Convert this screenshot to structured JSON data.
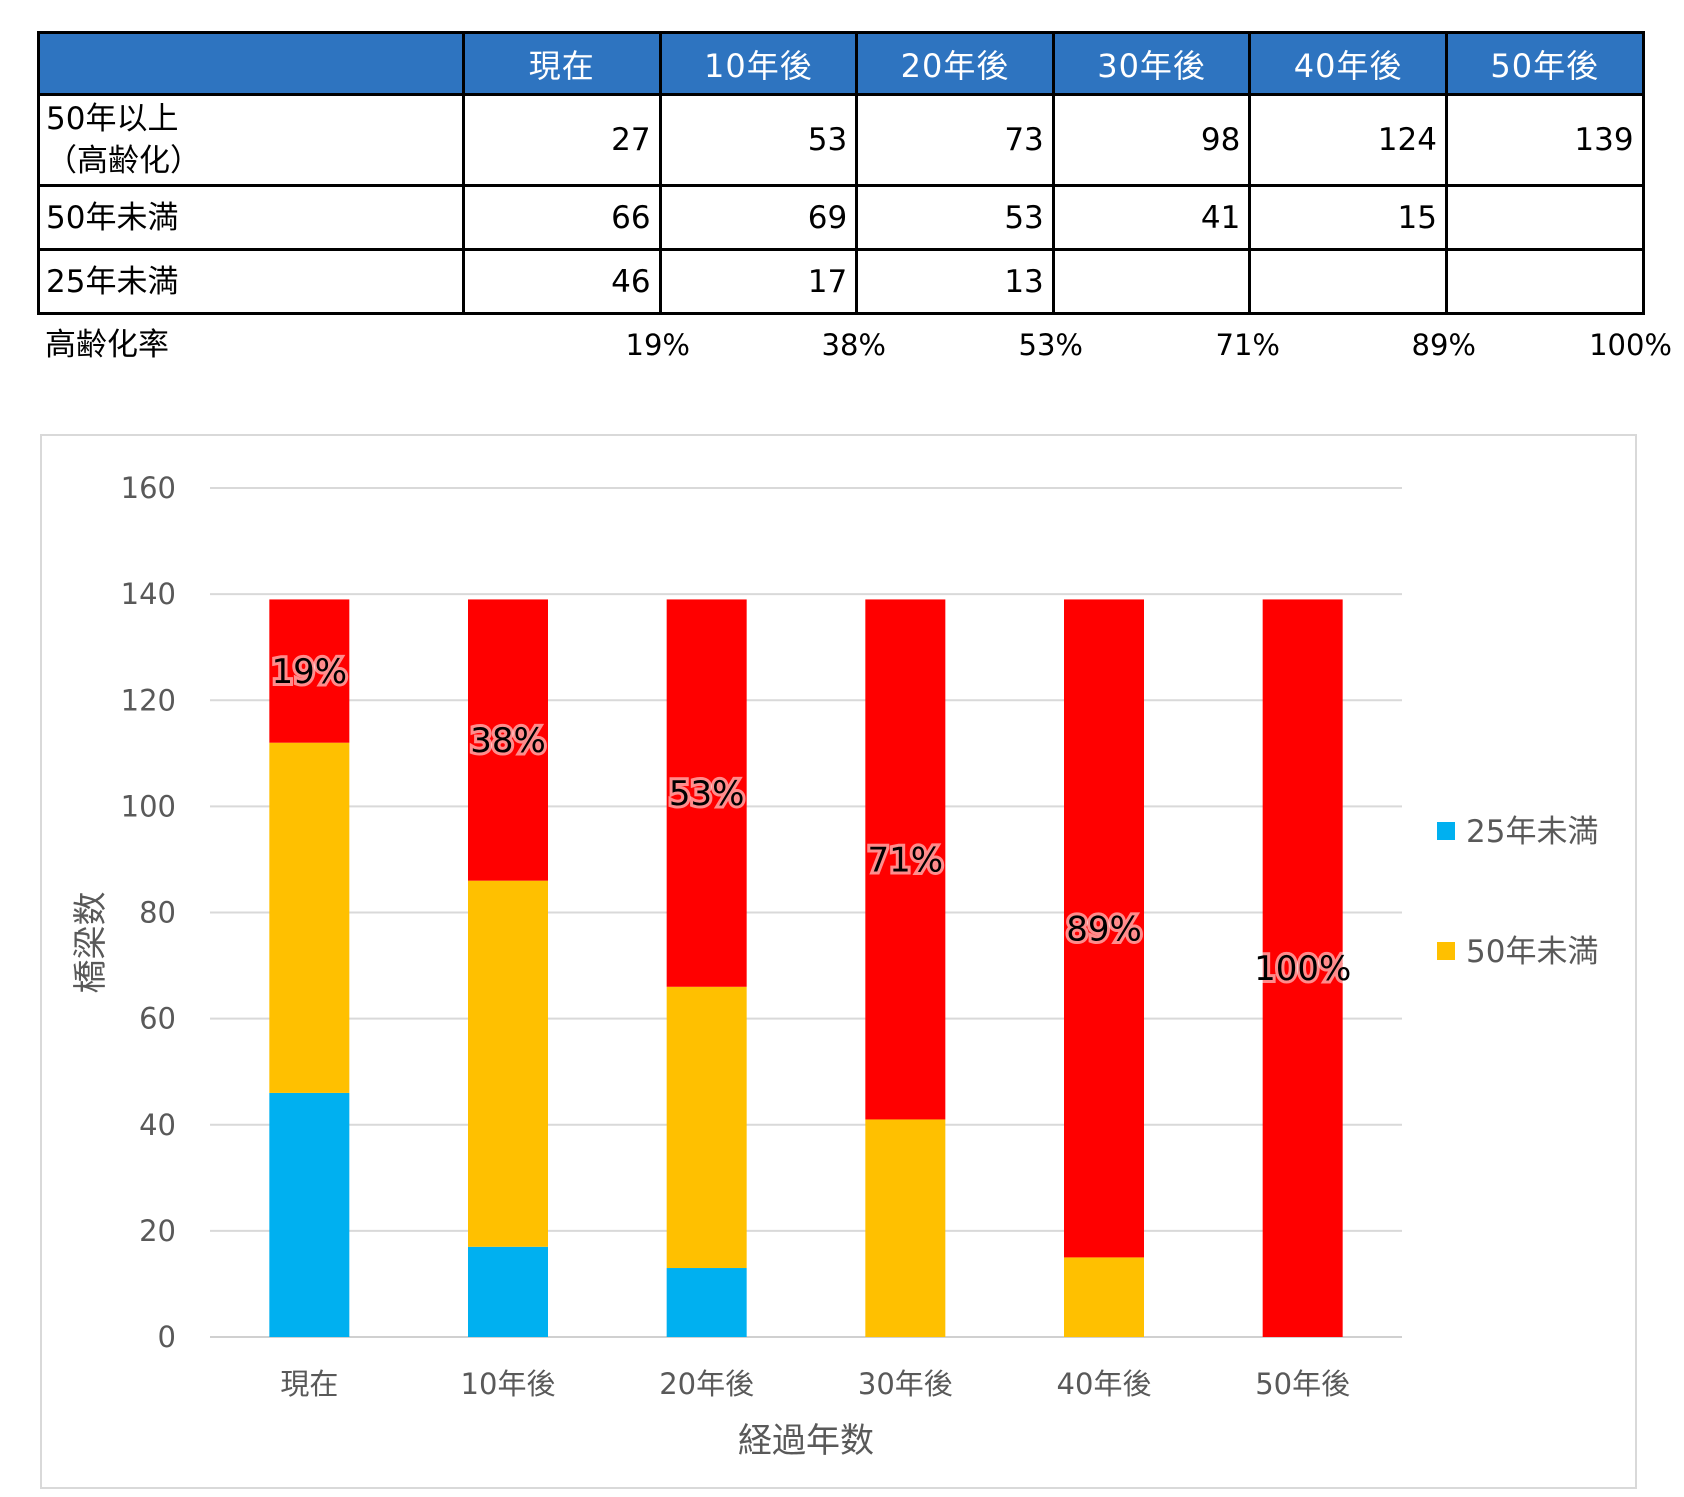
{
  "table": {
    "columns": [
      "",
      "現在",
      "10年後",
      "20年後",
      "30年後",
      "40年後",
      "50年後"
    ],
    "rows": [
      {
        "label_line1": "50年以上",
        "label_line2": "（高齢化）",
        "values": [
          "27",
          "53",
          "73",
          "98",
          "124",
          "139"
        ]
      },
      {
        "label": "50年未満",
        "values": [
          "66",
          "69",
          "53",
          "41",
          "15",
          ""
        ]
      },
      {
        "label": "25年未満",
        "values": [
          "46",
          "17",
          "13",
          "",
          "",
          ""
        ]
      }
    ],
    "rate_label": "高齢化率",
    "rates": [
      "19%",
      "38%",
      "53%",
      "71%",
      "89%",
      "100%"
    ]
  },
  "chart_data": {
    "type": "bar",
    "stacked": true,
    "categories": [
      "現在",
      "10年後",
      "20年後",
      "30年後",
      "40年後",
      "50年後"
    ],
    "series": [
      {
        "name": "25年未満",
        "color": "#00b0f0",
        "values": [
          46,
          17,
          13,
          0,
          0,
          0
        ]
      },
      {
        "name": "50年未満",
        "color": "#ffc000",
        "values": [
          66,
          69,
          53,
          41,
          15,
          0
        ]
      },
      {
        "values": [
          27,
          53,
          73,
          98,
          124,
          139
        ],
        "color": "#ff0000"
      }
    ],
    "data_labels": [
      "19%",
      "38%",
      "53%",
      "71%",
      "89%",
      "100%"
    ],
    "xlabel": "経過年数",
    "ylabel": "橋梁数",
    "ylim": [
      0,
      160
    ],
    "yticks": [
      0,
      20,
      40,
      60,
      80,
      100,
      120,
      140,
      160
    ],
    "grid": true,
    "legend_position": "right",
    "legend": [
      "25年未満",
      "50年未満"
    ]
  }
}
